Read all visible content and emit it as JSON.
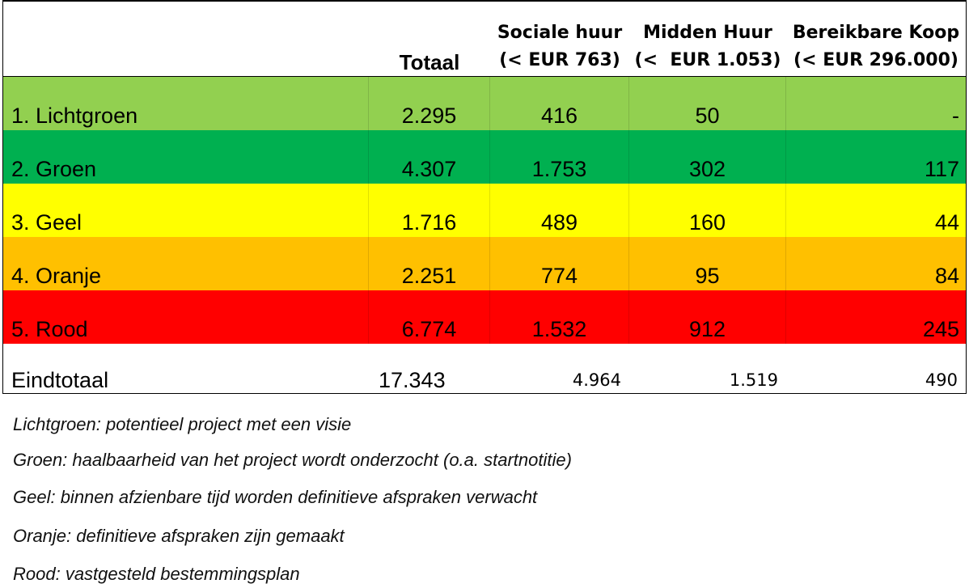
{
  "headers": {
    "totaal": "Totaal",
    "sociale_huur_l1": "Sociale huur",
    "sociale_huur_l2": "(< EUR 763)",
    "midden_huur_l1": "Midden Huur",
    "midden_huur_l2": "(<  EUR 1.053)",
    "bereikbare_koop_l1": "Bereikbare Koop",
    "bereikbare_koop_l2": "(< EUR 296.000)"
  },
  "rows": [
    {
      "label": "1. Lichtgroen",
      "totaal": "2.295",
      "sociale_huur": "416",
      "midden_huur": "50",
      "bereikbare_koop": "-",
      "color": "#92d050"
    },
    {
      "label": "2. Groen",
      "totaal": "4.307",
      "sociale_huur": "1.753",
      "midden_huur": "302",
      "bereikbare_koop": "117",
      "color": "#00b050"
    },
    {
      "label": "3. Geel",
      "totaal": "1.716",
      "sociale_huur": "489",
      "midden_huur": "160",
      "bereikbare_koop": "44",
      "color": "#ffff00"
    },
    {
      "label": "4. Oranje",
      "totaal": "2.251",
      "sociale_huur": "774",
      "midden_huur": "95",
      "bereikbare_koop": "84",
      "color": "#ffc000"
    },
    {
      "label": "5. Rood",
      "totaal": "6.774",
      "sociale_huur": "1.532",
      "midden_huur": "912",
      "bereikbare_koop": "245",
      "color": "#ff0000"
    }
  ],
  "total": {
    "label": "Eindtotaal",
    "totaal": "17.343",
    "sociale_huur": "4.964",
    "midden_huur": "1.519",
    "bereikbare_koop": "490"
  },
  "legend": [
    "Lichtgroen: potentieel project met een visie",
    "Groen: haalbaarheid van het project wordt onderzocht (o.a. startnotitie)",
    "Geel: binnen afzienbare tijd worden definitieve afspraken verwacht",
    "Oranje: definitieve afspraken zijn gemaakt",
    "Rood: vastgesteld bestemmingsplan"
  ]
}
